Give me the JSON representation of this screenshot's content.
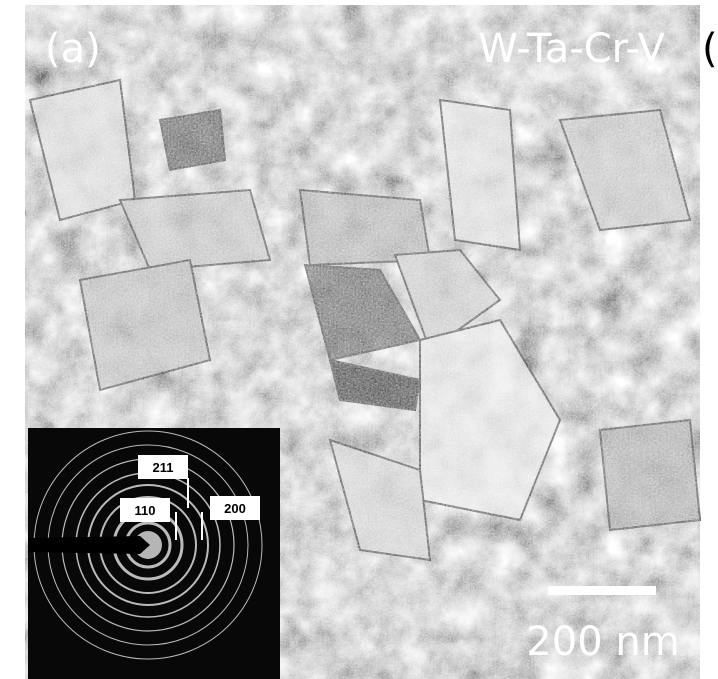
{
  "image": {
    "panel_label": "(a)",
    "title": "W-Ta-Cr-V",
    "edge_text": "(",
    "diffraction_inset": {
      "ring_labels": [
        "211",
        "110",
        "200"
      ]
    },
    "scale_bar": {
      "label": "200 nm"
    }
  }
}
